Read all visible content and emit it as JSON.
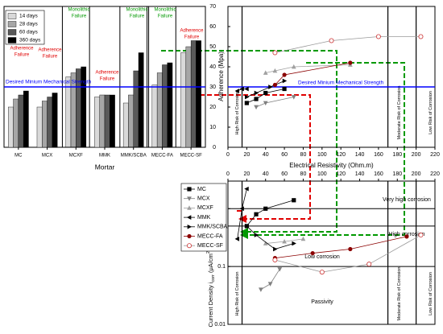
{
  "chart_data": [
    {
      "type": "bar",
      "categories": [
        "MC",
        "MCX",
        "MCXF",
        "MMK",
        "MMK/SCBA",
        "MECC-FA",
        "MECC-SF"
      ],
      "series": [
        {
          "name": "14 days",
          "color": "#d9d9d9",
          "values": [
            20,
            20,
            35,
            25,
            22,
            31,
            47
          ]
        },
        {
          "name": "28 days",
          "color": "#a6a6a6",
          "values": [
            24,
            23,
            37,
            26,
            26,
            37,
            50
          ]
        },
        {
          "name": "60 days",
          "color": "#595959",
          "values": [
            26,
            25,
            39,
            26,
            38,
            41,
            53
          ]
        },
        {
          "name": "360 days",
          "color": "#000000",
          "values": [
            28,
            27,
            40,
            26,
            47,
            42,
            53
          ]
        }
      ],
      "ylim": [
        0,
        70
      ],
      "x_label": "Mortar",
      "legend": "upper left",
      "reference_line": {
        "value": 30,
        "label": "Desired Minium Mechanical Strength",
        "color": "#0000ff"
      },
      "annotations": [
        {
          "lines": [
            "Adherence",
            "Failure"
          ],
          "color": "#e00000"
        },
        {
          "lines": [
            "Adherence",
            "Failure"
          ],
          "color": "#e00000"
        },
        {
          "lines": [
            "Monolithic",
            "Failure"
          ],
          "color": "#009900"
        },
        {
          "lines": [
            "Adherence",
            "Failure"
          ],
          "color": "#e00000"
        },
        {
          "lines": [
            "Monolithic",
            "Failure"
          ],
          "color": "#009900"
        },
        {
          "lines": [
            "Monolithic",
            "Failure"
          ],
          "color": "#009900"
        },
        {
          "lines": [
            "Adherence",
            "Failure"
          ],
          "color": "#e00000"
        }
      ]
    },
    {
      "type": "line",
      "xaxis_side": "bottom",
      "x_label": "Electrical Resistivity (Ohm.m)",
      "y_label": "Adherence (Mpa)",
      "xlim": [
        0,
        220
      ],
      "xticks": [
        0,
        20,
        40,
        60,
        80,
        100,
        120,
        140,
        160,
        180,
        200,
        220
      ],
      "ylim": [
        0,
        70
      ],
      "yticks": [
        0,
        10,
        20,
        30,
        40,
        50,
        60,
        70
      ],
      "reference_line": {
        "value": 30,
        "label": "Desired Minium Mechanical Strength",
        "color": "#0000ff"
      },
      "zones": [
        {
          "value": 15,
          "label": "High Risk of Corrosion"
        },
        {
          "value": 170,
          "label": "Moderate Risk of Corrosion"
        },
        {
          "value": 200,
          "label": "Low Risk of Corrosion"
        }
      ],
      "series": [
        {
          "name": "MC",
          "color": "#000000",
          "marker": "square",
          "x": [
            20,
            30,
            40,
            60
          ],
          "values": [
            22,
            24,
            27,
            29
          ]
        },
        {
          "name": "MCX",
          "color": "#808080",
          "marker": "triangle-down",
          "x": [
            30,
            40,
            70
          ],
          "values": [
            20,
            22,
            25
          ]
        },
        {
          "name": "MCXF",
          "color": "#a0a0a0",
          "marker": "triangle-up",
          "x": [
            40,
            50,
            70,
            130
          ],
          "values": [
            37,
            38,
            40,
            41
          ]
        },
        {
          "name": "MMK",
          "color": "#000000",
          "marker": "triangle-left",
          "x": [
            10,
            15,
            20
          ],
          "values": [
            28,
            29,
            29
          ]
        },
        {
          "name": "MMK/SCBA",
          "color": "#000000",
          "marker": "triangle-right",
          "x": [
            20,
            30,
            45,
            60
          ],
          "values": [
            25,
            27,
            30,
            33
          ]
        },
        {
          "name": "MECC-FA",
          "color": "#8b0000",
          "marker": "circle",
          "x": [
            50,
            60,
            130
          ],
          "values": [
            31,
            36,
            42
          ]
        },
        {
          "name": "MECC-SF",
          "color": "#cc3333",
          "marker": "circle-open",
          "x": [
            50,
            110,
            160,
            205
          ],
          "values": [
            47,
            53,
            55,
            55
          ]
        }
      ]
    },
    {
      "type": "line",
      "xaxis_side": "top",
      "log_y": true,
      "legend": "left",
      "y_label": [
        "Current Density i",
        "corr",
        " (μA/cm",
        "2",
        ")"
      ],
      "xlim": [
        0,
        220
      ],
      "xticks": [
        0,
        20,
        40,
        60,
        80,
        100,
        120,
        140,
        160,
        180,
        200,
        220
      ],
      "ylim": [
        0.01,
        3
      ],
      "yticks": [
        0.01,
        0.1,
        1
      ],
      "thresholds": [
        {
          "value": 1,
          "label": "Very high corrosion"
        },
        {
          "value": 0.5,
          "label": "High corrosion"
        },
        {
          "value": 0.1,
          "label": "Low corrosion"
        }
      ],
      "passivity_label": "Passivity",
      "zones": [
        {
          "value": 15,
          "label": "High Risk of Corrosion"
        },
        {
          "value": 170,
          "label": "Moderate Risk of Corrosion"
        },
        {
          "value": 200,
          "label": "Low Risk of Corrosion"
        }
      ],
      "series": [
        {
          "name": "MC",
          "color": "#000000",
          "marker": "square",
          "x": [
            20,
            30,
            40,
            70
          ],
          "values": [
            0.5,
            0.8,
            1.0,
            1.4
          ]
        },
        {
          "name": "MCX",
          "color": "#808080",
          "marker": "triangle-down",
          "x": [
            35,
            45,
            55
          ],
          "values": [
            0.04,
            0.05,
            0.09
          ]
        },
        {
          "name": "MCXF",
          "color": "#a0a0a0",
          "marker": "triangle-up",
          "x": [
            40,
            60,
            80
          ],
          "values": [
            0.25,
            0.27,
            0.3
          ]
        },
        {
          "name": "MMK",
          "color": "#000000",
          "marker": "triangle-left",
          "x": [
            10,
            15,
            20
          ],
          "values": [
            0.3,
            1.0,
            2.2
          ]
        },
        {
          "name": "MMK/SCBA",
          "color": "#000000",
          "marker": "triangle-right",
          "x": [
            20,
            30,
            50,
            70
          ],
          "values": [
            0.5,
            0.35,
            0.2,
            0.25
          ]
        },
        {
          "name": "MECC-FA",
          "color": "#8b0000",
          "marker": "circle",
          "x": [
            50,
            90,
            130,
            190
          ],
          "values": [
            0.14,
            0.17,
            0.2,
            0.33
          ]
        },
        {
          "name": "MECC-SF",
          "color": "#cc3333",
          "marker": "circle-open",
          "x": [
            50,
            100,
            150,
            205
          ],
          "values": [
            0.13,
            0.08,
            0.11,
            0.35
          ]
        }
      ]
    }
  ]
}
